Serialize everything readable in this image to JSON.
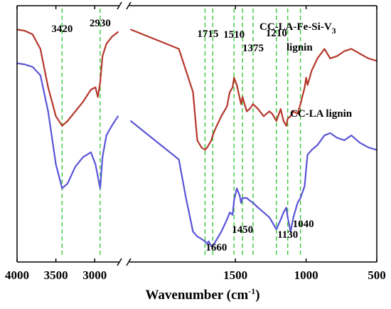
{
  "chart_data": {
    "type": "line",
    "title": "",
    "xlabel": "Wavenumber (cm",
    "xlabel_sup": "-1",
    "xlabel_tail": ")",
    "ylabel": "",
    "x_reversed": true,
    "x_axis_break": [
      2700,
      2240
    ],
    "xlim": [
      4000,
      500
    ],
    "x_ticks": [
      4000,
      3500,
      3000,
      1500,
      1000,
      500
    ],
    "x_tick_labels": [
      "4000",
      "3500",
      "3000",
      "1500",
      "1000",
      "500"
    ],
    "grid": false,
    "band_markers": [
      {
        "x": 3420,
        "label": "3420",
        "position": "top"
      },
      {
        "x": 2930,
        "label": "2930",
        "position": "top"
      },
      {
        "x": 1715,
        "label": "1715",
        "position": "top"
      },
      {
        "x": 1660,
        "label": "1660",
        "position": "bottom"
      },
      {
        "x": 1510,
        "label": "1510",
        "position": "top"
      },
      {
        "x": 1450,
        "label": "1450",
        "position": "bottom"
      },
      {
        "x": 1375,
        "label": "1375",
        "position": "top"
      },
      {
        "x": 1210,
        "label": "1210",
        "position": "top"
      },
      {
        "x": 1130,
        "label": "1130",
        "position": "bottom"
      },
      {
        "x": 1040,
        "label": "1040",
        "position": "bottom"
      }
    ],
    "series": [
      {
        "name": "CC-LA-Fe-Si-V",
        "name_sub": "3",
        "name_line2": "lignin",
        "color": "#b5372b",
        "x": [
          4000,
          3900,
          3800,
          3700,
          3600,
          3500,
          3420,
          3350,
          3250,
          3150,
          3050,
          2990,
          2960,
          2930,
          2900,
          2850,
          2780,
          2700,
          2240,
          1900,
          1800,
          1770,
          1740,
          1715,
          1700,
          1690,
          1670,
          1660,
          1640,
          1600,
          1560,
          1540,
          1520,
          1510,
          1490,
          1460,
          1450,
          1420,
          1400,
          1375,
          1340,
          1300,
          1260,
          1240,
          1210,
          1180,
          1160,
          1140,
          1130,
          1110,
          1090,
          1060,
          1040,
          1010,
          1000,
          990,
          960,
          920,
          870,
          830,
          780,
          730,
          680,
          620,
          560,
          500
        ],
        "y": [
          96,
          95.5,
          94,
          88,
          72,
          60,
          56,
          58,
          62,
          66,
          71,
          72,
          68,
          74,
          85,
          90,
          93,
          95,
          96,
          88,
          70,
          50,
          47,
          46,
          47,
          48,
          50,
          52,
          55,
          60,
          64,
          70,
          72,
          76,
          73,
          65,
          68,
          62,
          63,
          65,
          63,
          60,
          62,
          61,
          58,
          63,
          58,
          56,
          59,
          60,
          62,
          61,
          65,
          72,
          76,
          73,
          79,
          84,
          88,
          84,
          85,
          87,
          88,
          86,
          84,
          83
        ]
      },
      {
        "name": "CC-LA lignin",
        "color": "#5a55d6",
        "x": [
          4000,
          3900,
          3800,
          3700,
          3600,
          3500,
          3420,
          3350,
          3250,
          3150,
          3050,
          2990,
          2960,
          2930,
          2900,
          2850,
          2780,
          2700,
          2240,
          1900,
          1850,
          1800,
          1770,
          1740,
          1715,
          1700,
          1690,
          1670,
          1660,
          1640,
          1600,
          1560,
          1540,
          1520,
          1510,
          1490,
          1470,
          1460,
          1450,
          1420,
          1400,
          1375,
          1340,
          1300,
          1260,
          1240,
          1210,
          1180,
          1160,
          1140,
          1130,
          1110,
          1090,
          1060,
          1040,
          1010,
          1000,
          990,
          960,
          920,
          870,
          830,
          780,
          730,
          680,
          620,
          560,
          500
        ],
        "y": [
          82,
          81.5,
          80.5,
          77,
          62,
          40,
          30,
          32,
          39,
          43,
          45,
          40,
          35,
          30,
          43,
          52,
          56,
          60,
          58,
          42,
          26,
          12,
          10,
          9,
          8,
          7,
          8,
          6,
          6,
          8,
          12,
          17,
          20,
          19,
          25,
          30,
          27,
          24,
          26,
          26,
          25,
          24,
          22,
          20,
          18,
          16,
          13,
          17,
          20,
          22,
          18,
          12,
          18,
          24,
          26,
          31,
          38,
          44,
          46,
          48,
          52,
          53,
          51,
          50,
          52,
          49,
          47,
          46
        ]
      }
    ]
  }
}
